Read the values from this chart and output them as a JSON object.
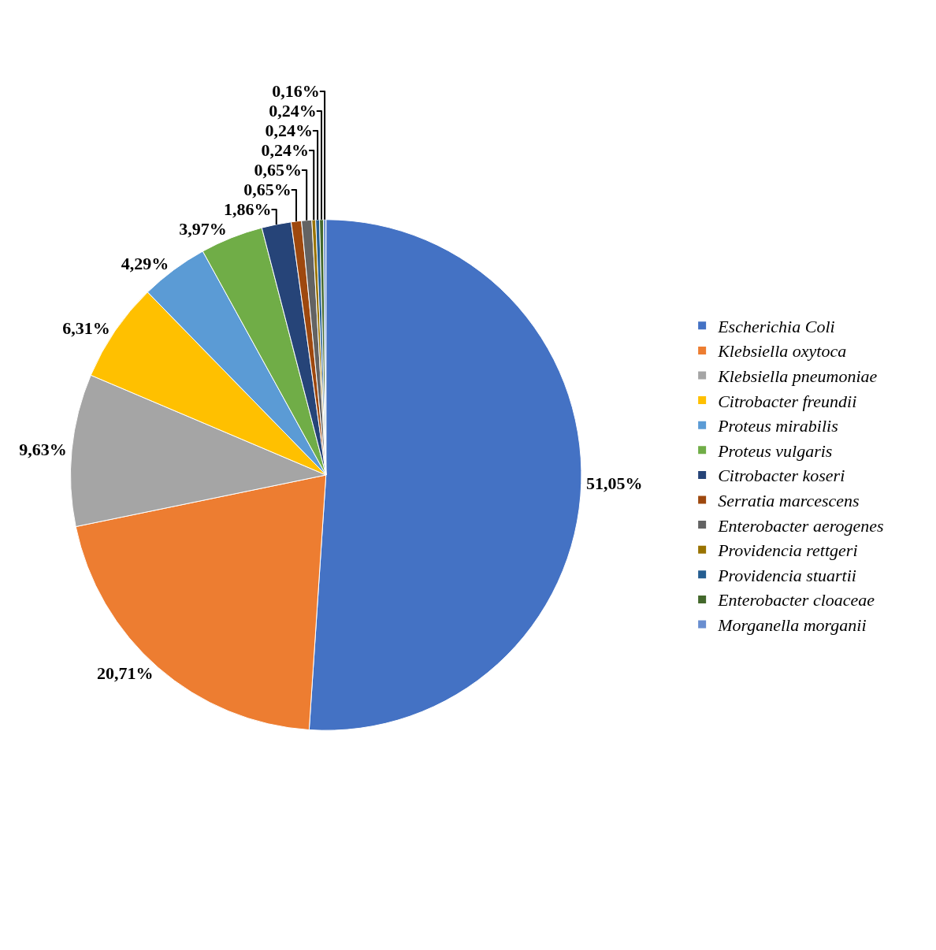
{
  "chart_data": {
    "type": "pie",
    "categories": [
      "Escherichia Coli",
      "Klebsiella oxytoca",
      "Klebsiella pneumoniae",
      "Citrobacter freundii",
      "Proteus mirabilis",
      "Proteus vulgaris",
      "Citrobacter koseri",
      "Serratia marcescens",
      "Enterobacter aerogenes",
      "Providencia rettgeri",
      "Providencia stuartii",
      "Enterobacter cloaceae",
      "Morganella morganii"
    ],
    "values": [
      51.05,
      20.71,
      9.63,
      6.31,
      4.29,
      3.97,
      1.86,
      0.65,
      0.65,
      0.24,
      0.24,
      0.24,
      0.16
    ],
    "value_labels": [
      "51,05%",
      "20,71%",
      "9,63%",
      "6,31%",
      "4,29%",
      "3,97%",
      "1,86%",
      "0,65%",
      "0,65%",
      "0,24%",
      "0,24%",
      "0,24%",
      "0,16%"
    ],
    "colors": [
      "#4472c4",
      "#ed7d31",
      "#a5a5a5",
      "#ffc000",
      "#5b9bd5",
      "#70ad47",
      "#264478",
      "#9e480e",
      "#636363",
      "#997300",
      "#255e91",
      "#43682b",
      "#698ed0"
    ],
    "legend": "right"
  }
}
